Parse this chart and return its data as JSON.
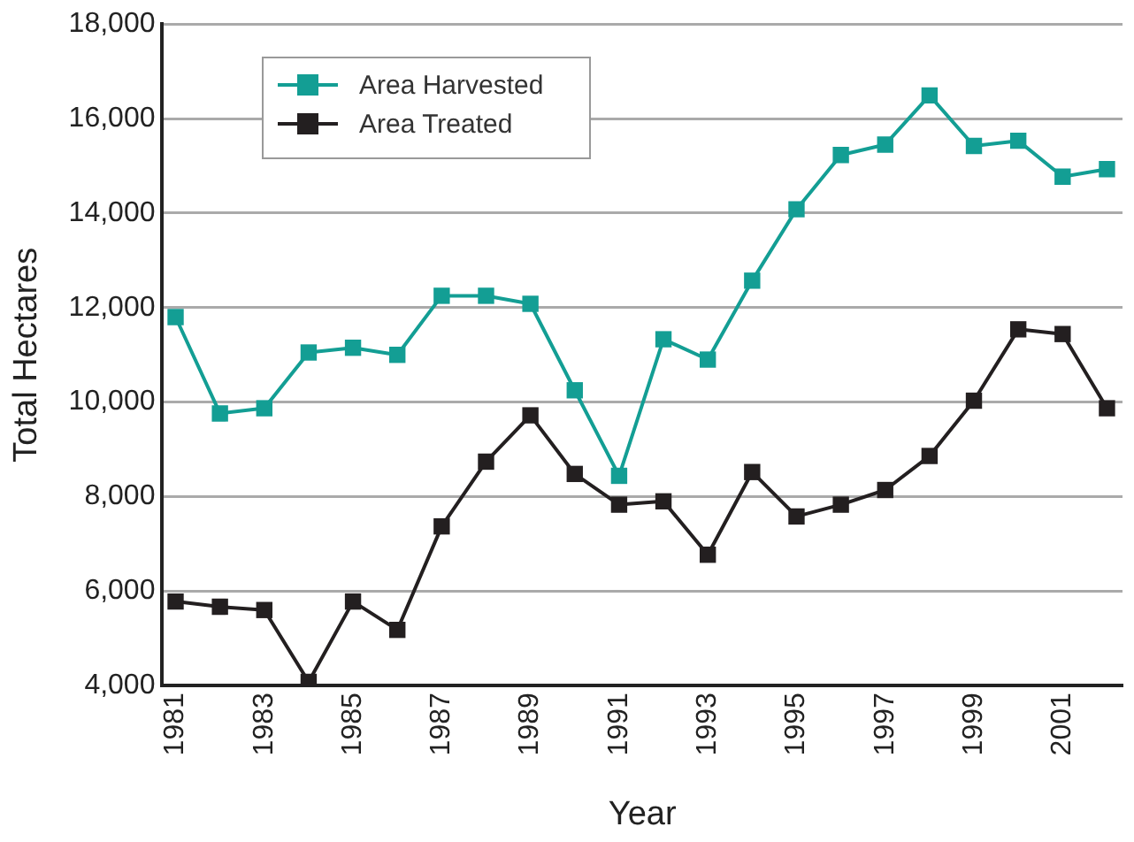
{
  "chart_data": {
    "type": "line",
    "xlabel": "Year",
    "ylabel": "Total Hectares",
    "x": [
      1981,
      1982,
      1983,
      1984,
      1985,
      1986,
      1987,
      1988,
      1989,
      1990,
      1991,
      1992,
      1993,
      1994,
      1995,
      1996,
      1997,
      1998,
      1999,
      2000,
      2001,
      2002
    ],
    "series": [
      {
        "name": "Area Harvested",
        "color": "#139e94",
        "values": [
          11800,
          9760,
          9870,
          11050,
          11150,
          11000,
          12250,
          12250,
          12080,
          10250,
          8440,
          11330,
          10900,
          12570,
          14080,
          15230,
          15450,
          16490,
          15420,
          15530,
          14770,
          14930
        ]
      },
      {
        "name": "Area Treated",
        "color": "#231f20",
        "values": [
          5780,
          5670,
          5600,
          4080,
          5780,
          5180,
          7370,
          8740,
          9720,
          8480,
          7830,
          7900,
          6770,
          8520,
          7580,
          7830,
          8140,
          8860,
          10030,
          11540,
          11440,
          9870
        ]
      }
    ],
    "xlim": [
      1980.7,
      2002.35
    ],
    "xticks": [
      1981,
      1983,
      1985,
      1987,
      1989,
      1991,
      1993,
      1995,
      1997,
      1999,
      2001
    ],
    "ylim": [
      4000,
      18000
    ],
    "yticks": [
      {
        "value": 4000,
        "label": "4,000"
      },
      {
        "value": 6000,
        "label": "6,000"
      },
      {
        "value": 8000,
        "label": "8,000"
      },
      {
        "value": 10000,
        "label": "10,000"
      },
      {
        "value": 12000,
        "label": "12,000"
      },
      {
        "value": 14000,
        "label": "14,000"
      },
      {
        "value": 16000,
        "label": "16,000"
      },
      {
        "value": 18000,
        "label": "18,000"
      }
    ],
    "grid": "y",
    "legend": "top left",
    "marker": "square",
    "line_style": "solid"
  }
}
